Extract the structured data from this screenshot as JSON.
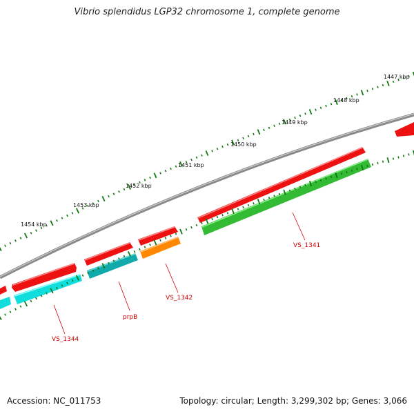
{
  "title": "Vibrio splendidus LGP32 chromosome 1, complete genome",
  "footer": {
    "accession": "Accession: NC_011753",
    "summary": "Topology: circular; Length: 3,299,302 bp; Genes: 3,066"
  },
  "colors": {
    "backbone": "#7a7a7a",
    "cds_red": "#ee1111",
    "cds_green": "#33bb33",
    "cds_cyan": "#11cccc",
    "cds_teal": "#11aaaa",
    "cds_orange": "#ff8800",
    "tick": "#117711",
    "label": "#cc0000"
  },
  "kbp_ticks": [
    {
      "label": "1447 kbp"
    },
    {
      "label": "1448 kbp"
    },
    {
      "label": "1449 kbp"
    },
    {
      "label": "1450 kbp"
    },
    {
      "label": "1451 kbp"
    },
    {
      "label": "1452 kbp"
    },
    {
      "label": "1453 kbp"
    },
    {
      "label": "1454 kbp"
    }
  ],
  "gene_labels": [
    {
      "text": "VS_1341"
    },
    {
      "text": "VS_1342"
    },
    {
      "text": "prpB"
    },
    {
      "text": "VS_1344"
    }
  ]
}
